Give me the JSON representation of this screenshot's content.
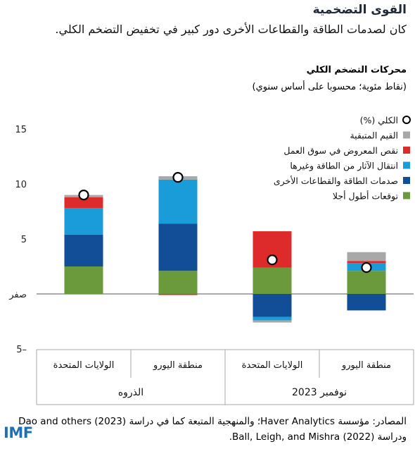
{
  "header": {
    "title": "القوى التضخمية",
    "subtitle": "كان لصدمات الطاقة والقطاعات الأخرى دور كبير في تخفيض التضخم الكلي."
  },
  "chart_header": {
    "title": "محركات التضخم الكلي",
    "subtitle": "(نقاط مئوية؛ محسوبا على أساس سنوي)"
  },
  "footer": {
    "sources": "المصادر: مؤسسة Haver Analytics؛ والمنهجية المتبعة كما في دراسة Dao and others (2023) ودراسة Ball, Leigh, and Mishra (2022).",
    "logo_text": "IMF"
  },
  "chart_data": {
    "type": "bar",
    "stacked": true,
    "ylim": [
      -5,
      15
    ],
    "yticks": [
      {
        "value": 15,
        "label": "15"
      },
      {
        "value": 10,
        "label": "10"
      },
      {
        "value": 5,
        "label": "5"
      },
      {
        "value": 0,
        "label": "صفر"
      },
      {
        "value": -5,
        "label": "5–"
      }
    ],
    "categories": [
      "الولايات المتحدة",
      "منطقة اليورو",
      "الولايات المتحدة",
      "منطقة اليورو"
    ],
    "groups": [
      {
        "label": "الذروه",
        "categories": [
          0,
          1
        ]
      },
      {
        "label": "نوفمبر 2023",
        "categories": [
          2,
          3
        ]
      }
    ],
    "series": [
      {
        "name": "توقعات أطول أجلا",
        "color": "#6a9a3c",
        "values": [
          2.5,
          2.1,
          2.4,
          2.1
        ]
      },
      {
        "name": "صدمات الطاقة والقطاعات الأخرى",
        "color": "#124e97",
        "values": [
          2.9,
          4.3,
          -2.1,
          -1.5
        ]
      },
      {
        "name": "انتقال الآثار من الطاقة وغيرها",
        "color": "#199cd8",
        "values": [
          2.4,
          4.0,
          -0.3,
          0.7
        ]
      },
      {
        "name": "نقص المعروض في سوق العمل",
        "color": "#dd2b2b",
        "values": [
          1.0,
          -0.1,
          3.3,
          0.2
        ]
      },
      {
        "name": "القيم المتبقية",
        "color": "#a8a8a8",
        "values": [
          0.2,
          0.3,
          -0.2,
          0.8
        ]
      }
    ],
    "total": {
      "name": "الكلي (%)",
      "values": [
        9.0,
        10.6,
        3.1,
        2.4
      ]
    },
    "grid": false,
    "legend": {
      "position": "top-right"
    }
  }
}
